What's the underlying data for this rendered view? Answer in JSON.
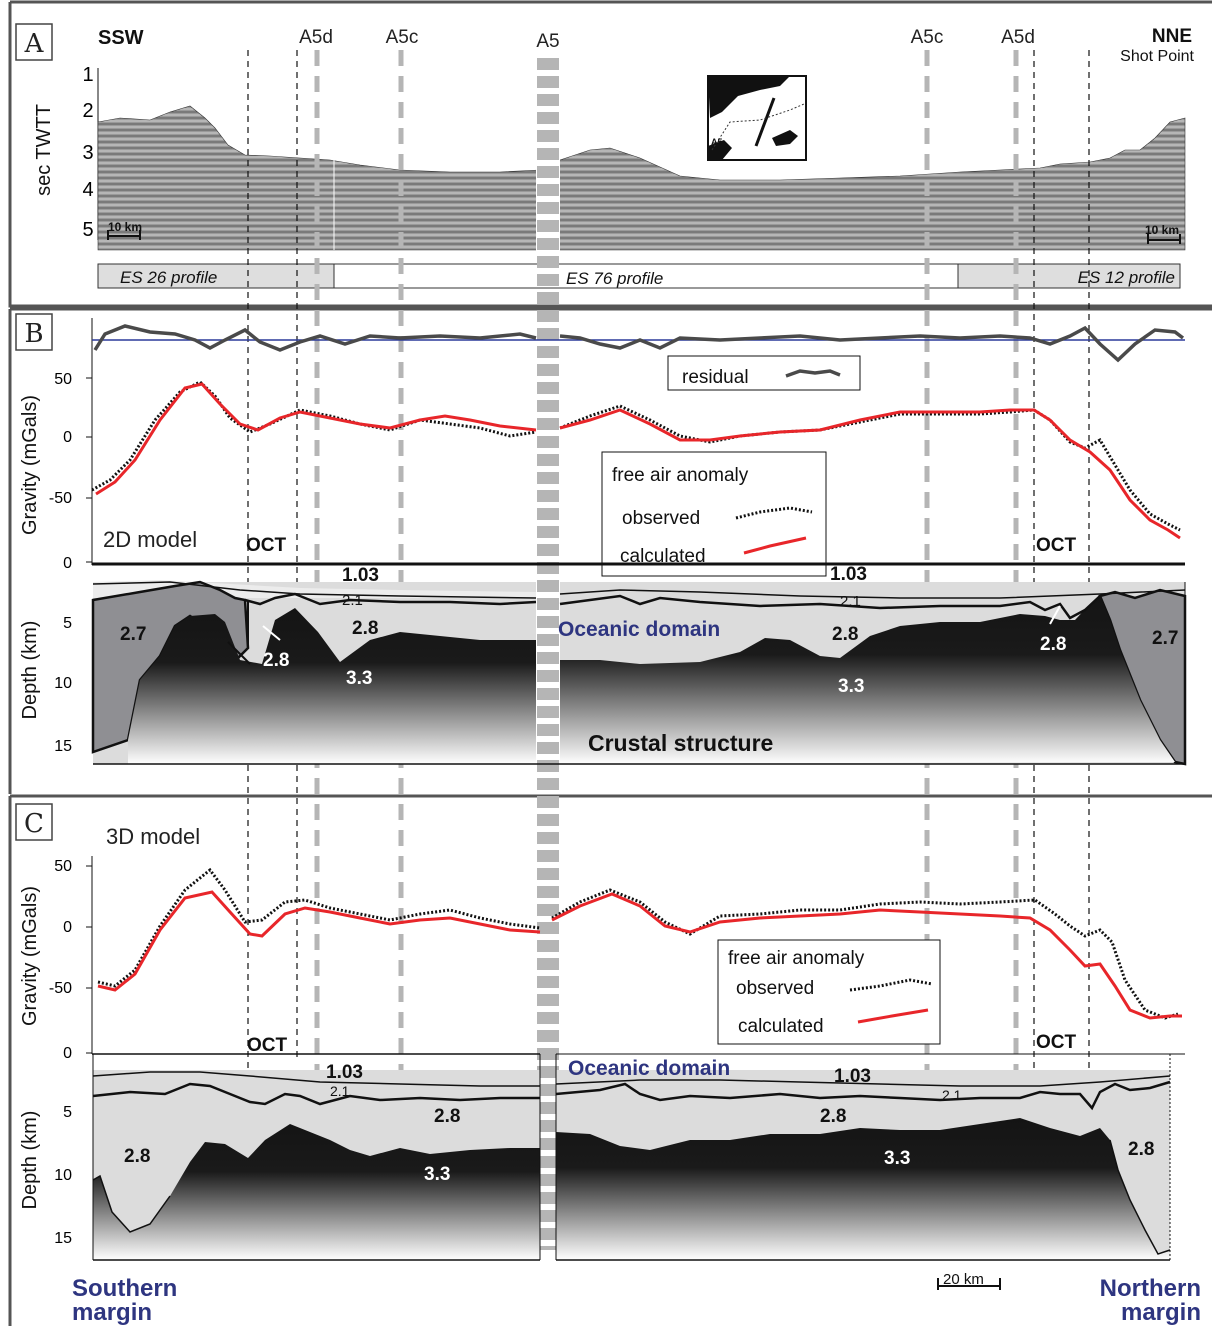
{
  "colors": {
    "panel_border": "#555555",
    "calculated": "#e8262a",
    "observed": "#111111",
    "residual": "#4a4a4a",
    "baseline": "#2b3a9a",
    "label_blue": "#2e3580",
    "continental_crust": "#8f8f93",
    "oceanic_crust": "#dcdcdc",
    "mantle": "#141414",
    "profile_box_grey": "#dedede",
    "markers": "#b5b5b5"
  },
  "panel_a": {
    "letter": "A",
    "dir_left": "SSW",
    "dir_right": "NNE",
    "shot_point": "Shot Point",
    "ylabel": "sec TWTT",
    "yticks": [
      "1",
      "2",
      "3",
      "4",
      "5"
    ],
    "scale_left": "10 km",
    "scale_right": "10 km",
    "profiles": [
      "ES  26 profile",
      "ES 76 profile",
      "ES 12 profile"
    ],
    "inset_label": "A5"
  },
  "markers": {
    "top_labels": [
      "A5d",
      "A5c",
      "A5",
      "A5c",
      "A5d"
    ]
  },
  "panel_b": {
    "letter": "B",
    "ylabel_gravity": "Gravity (mGals)",
    "gravity_ticks": [
      "50",
      "0",
      "-50",
      "0"
    ],
    "legend_residual": "residual",
    "legend_title": "free air anomaly",
    "legend_observed": "observed",
    "legend_calculated": "calculated",
    "model_label": "2D model",
    "oct_left": "OCT",
    "oct_right": "OCT",
    "ylabel_depth": "Depth (km)",
    "depth_ticks": [
      "5",
      "10",
      "15"
    ],
    "densities": {
      "water_left": "1.03",
      "water_right": "1.03",
      "sed_left": "2.1",
      "sed_right": "2.1",
      "cont_left": "2.7",
      "cont_right": "2.7",
      "ocean_left": "2.8",
      "ocean_mid": "2.8",
      "ocean_inlet_left": "2.8",
      "ocean_inlet_right": "2.8",
      "mantle_left": "3.3",
      "mantle_right": "3.3"
    },
    "oceanic_domain": "Oceanic domain",
    "crustal_structure": "Crustal structure"
  },
  "panel_c": {
    "letter": "C",
    "model_label": "3D model",
    "ylabel_gravity": "Gravity (mGals)",
    "gravity_ticks": [
      "50",
      "0",
      "-50",
      "0"
    ],
    "legend_title": "free air anomaly",
    "legend_observed": "observed",
    "legend_calculated": "calculated",
    "oct_left": "OCT",
    "oct_right": "OCT",
    "ylabel_depth": "Depth (km)",
    "depth_ticks": [
      "5",
      "10",
      "15"
    ],
    "densities": {
      "water_left": "1.03",
      "water_right": "1.03",
      "sed_left": "2.1",
      "sed_right": "2.1",
      "ocean_left": "2.8",
      "ocean_mid": "2.8",
      "ocean_far_left": "2.8",
      "ocean_far_right": "2.8",
      "mantle_left": "3.3",
      "mantle_right": "3.3"
    },
    "oceanic_domain": "Oceanic domain",
    "scale_bar": "20 km",
    "southern_margin_1": "Southern",
    "southern_margin_2": "margin",
    "northern_margin_1": "Northern",
    "northern_margin_2": "margin"
  }
}
